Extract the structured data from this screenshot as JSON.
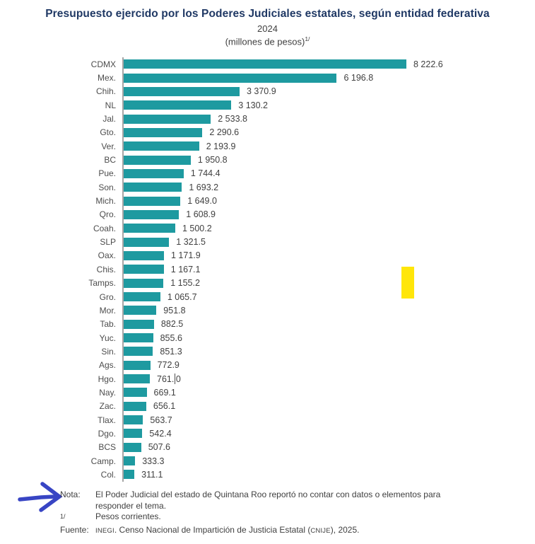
{
  "header": {
    "title": "Presupuesto ejercido por los Poderes Judiciales estatales, según entidad federativa",
    "subtitle": "2024",
    "units_label": "(millones de pesos)",
    "units_superscript": "1/"
  },
  "chart_data": {
    "type": "bar",
    "orientation": "horizontal",
    "title": "Presupuesto ejercido por los Poderes Judiciales estatales, según entidad federativa",
    "subtitle": "2024",
    "xlabel": "millones de pesos",
    "ylabel": "entidad federativa",
    "xlim": [
      0,
      8500
    ],
    "grid": false,
    "legend": false,
    "bar_color": "#1e9aa0",
    "categories": [
      "CDMX",
      "Mex.",
      "Chih.",
      "NL",
      "Jal.",
      "Gto.",
      "Ver.",
      "BC",
      "Pue.",
      "Son.",
      "Mich.",
      "Qro.",
      "Coah.",
      "SLP",
      "Oax.",
      "Chis.",
      "Tamps.",
      "Gro.",
      "Mor.",
      "Tab.",
      "Yuc.",
      "Sin.",
      "Ags.",
      "Hgo.",
      "Nay.",
      "Zac.",
      "Tlax.",
      "Dgo.",
      "BCS",
      "Camp.",
      "Col."
    ],
    "values": [
      8222.6,
      6196.8,
      3370.9,
      3130.2,
      2533.8,
      2290.6,
      2193.9,
      1950.8,
      1744.4,
      1693.2,
      1649.0,
      1608.9,
      1500.2,
      1321.5,
      1171.9,
      1167.1,
      1155.2,
      1065.7,
      951.8,
      882.5,
      855.6,
      851.3,
      772.9,
      761.0,
      669.1,
      656.1,
      563.7,
      542.4,
      507.6,
      333.3,
      311.1
    ],
    "value_labels": [
      "8 222.6",
      "6 196.8",
      "3 370.9",
      "3 130.2",
      "2 533.8",
      "2 290.6",
      "2 193.9",
      "1 950.8",
      "1 744.4",
      "1 693.2",
      "1 649.0",
      "1 608.9",
      "1 500.2",
      "1 321.5",
      "1 171.9",
      "1 167.1",
      "1 155.2",
      "1 065.7",
      "951.8",
      "882.5",
      "855.6",
      "851.3",
      "772.9",
      "761.0",
      "669.1",
      "656.1",
      "563.7",
      "542.4",
      "507.6",
      "333.3",
      "311.1"
    ]
  },
  "annotations": {
    "highlight_rect": {
      "color": "#ffe60a",
      "description": "yellow-highlight-rectangle"
    },
    "arrow": {
      "color": "#3845c4",
      "description": "hand-drawn-blue-arrow-pointing-at-nota"
    },
    "text_cursor": {
      "row": "Hgo.",
      "label_parts": [
        "761.",
        "0"
      ],
      "row_index": 23
    }
  },
  "notes": {
    "nota_label": "Nota:",
    "nota_line1": "El Poder Judicial del estado de Quintana Roo reportó no contar con datos o elementos para",
    "nota_line2": "responder el tema.",
    "footnote_marker": "1/",
    "footnote_text": "Pesos corrientes.",
    "fuente_label": "Fuente:",
    "fuente_inegi": "INEGI",
    "fuente_middle": ". Censo Nacional de Impartición de Justicia Estatal (",
    "fuente_cnije": "CNIJE",
    "fuente_end": "), 2025."
  },
  "colors": {
    "bar": "#1e9aa0",
    "title": "#1f3864",
    "axis_line": "#a6a6a6",
    "text": "#404040",
    "highlight": "#ffe60a",
    "arrow": "#3845c4"
  }
}
